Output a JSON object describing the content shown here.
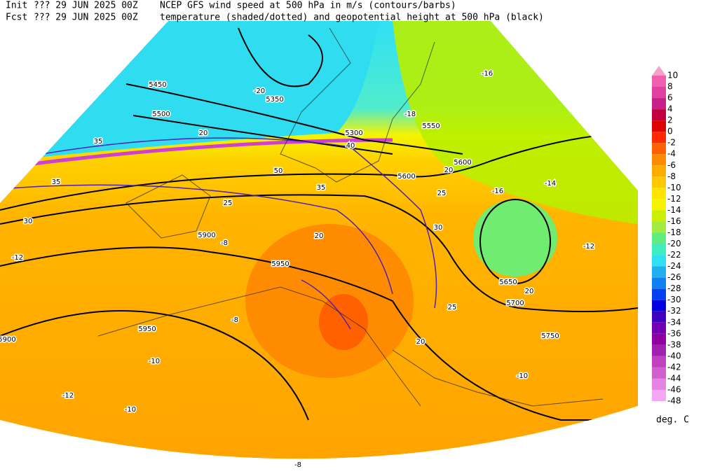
{
  "header": {
    "init_label": "Init",
    "init_time": "??? 29 JUN 2025 00Z",
    "line1": "NCEP GFS wind speed at 500 hPa in m/s (contours/barbs)",
    "fcst_label": "Fcst",
    "fcst_time": "??? 29 JUN 2025 00Z",
    "line2": "temperature (shaded/dotted) and geopotential height at 500 hPa (black)"
  },
  "colorbar": {
    "ticks": [
      10,
      8,
      6,
      4,
      2,
      0,
      -2,
      -4,
      -6,
      -8,
      -10,
      -12,
      -14,
      -16,
      -18,
      -20,
      -22,
      -24,
      -26,
      -28,
      -30,
      -32,
      -34,
      -36,
      -38,
      -40,
      -42,
      -44,
      -46,
      -48
    ],
    "colors": [
      "#f4a0c8",
      "#f060b0",
      "#e040a0",
      "#c82088",
      "#c00040",
      "#e00000",
      "#ff2800",
      "#ff6000",
      "#ff8c00",
      "#ffac00",
      "#ffc800",
      "#ffe400",
      "#f4f400",
      "#c8f000",
      "#a0ec40",
      "#60ec80",
      "#40ecc0",
      "#30e0f4",
      "#20b0f0",
      "#1080f0",
      "#0040f0",
      "#0000e0",
      "#4000c0",
      "#7000b0",
      "#9000a0",
      "#a020b0",
      "#c040c0",
      "#d060d0",
      "#e484e4",
      "#f4a8f4"
    ],
    "unit": "deg. C"
  },
  "map_labels": [
    "5450",
    "5500",
    "5350",
    "5300",
    "5550",
    "5600",
    "5650",
    "5700",
    "5750",
    "5900",
    "5950",
    "5950",
    "5900",
    "5600",
    "-16",
    "-20",
    "-18",
    "-16",
    "-14",
    "-12",
    "-12",
    "-10",
    "-10",
    "-8",
    "-8",
    "-10",
    "-12",
    "-8",
    "35",
    "35",
    "30",
    "20",
    "25",
    "40",
    "50",
    "35",
    "20",
    "20",
    "25",
    "30",
    "20",
    "25",
    "20"
  ]
}
